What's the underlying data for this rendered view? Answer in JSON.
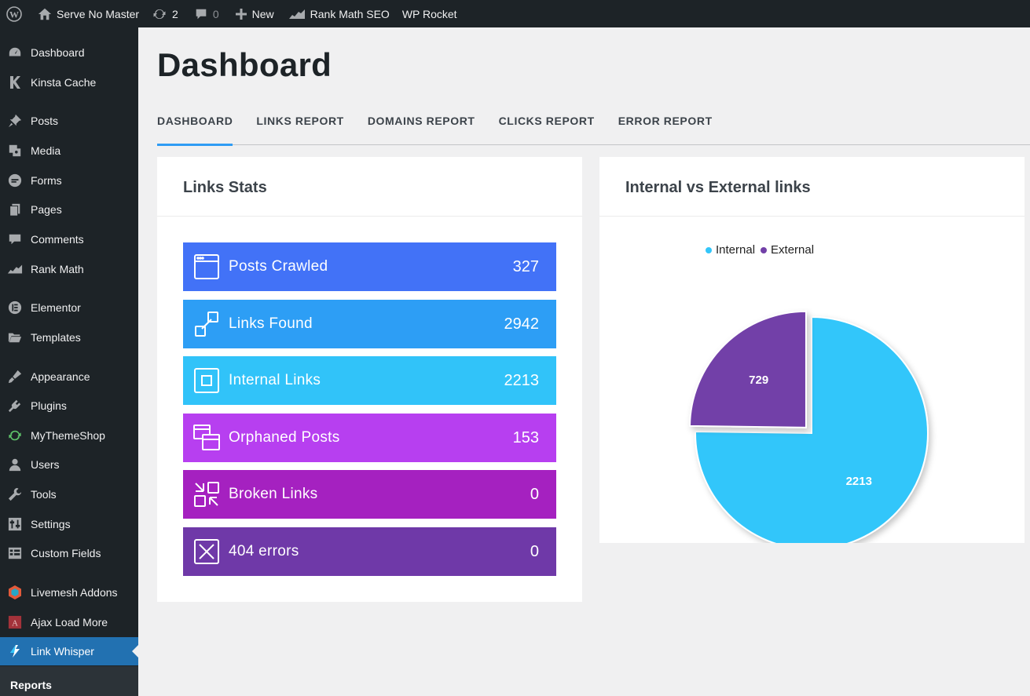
{
  "adminbar": {
    "site_name": "Serve No Master",
    "updates_count": "2",
    "comments_count": "0",
    "new_label": "New",
    "rankmath_label": "Rank Math SEO",
    "wprocket_label": "WP Rocket"
  },
  "sidebar": {
    "items": [
      {
        "label": "Dashboard",
        "icon": "dashboard-icon"
      },
      {
        "label": "Kinsta Cache",
        "icon": "kinsta-icon"
      },
      {
        "label": "Posts",
        "icon": "pin-icon"
      },
      {
        "label": "Media",
        "icon": "media-icon"
      },
      {
        "label": "Forms",
        "icon": "forms-icon"
      },
      {
        "label": "Pages",
        "icon": "pages-icon"
      },
      {
        "label": "Comments",
        "icon": "comment-icon"
      },
      {
        "label": "Rank Math",
        "icon": "rank-math-icon"
      },
      {
        "label": "Elementor",
        "icon": "elementor-icon"
      },
      {
        "label": "Templates",
        "icon": "folder-icon"
      },
      {
        "label": "Appearance",
        "icon": "brush-icon"
      },
      {
        "label": "Plugins",
        "icon": "plugin-icon"
      },
      {
        "label": "MyThemeShop",
        "icon": "refresh-icon"
      },
      {
        "label": "Users",
        "icon": "user-icon"
      },
      {
        "label": "Tools",
        "icon": "wrench-icon"
      },
      {
        "label": "Settings",
        "icon": "settings-icon"
      },
      {
        "label": "Custom Fields",
        "icon": "grid-icon"
      },
      {
        "label": "Livemesh Addons",
        "icon": "livemesh-icon"
      },
      {
        "label": "Ajax Load More",
        "icon": "ajax-icon"
      },
      {
        "label": "Link Whisper",
        "icon": "link-whisper-icon"
      }
    ],
    "submenu_label": "Reports"
  },
  "page": {
    "title": "Dashboard",
    "tabs": [
      "DASHBOARD",
      "LINKS REPORT",
      "DOMAINS REPORT",
      "CLICKS REPORT",
      "ERROR REPORT"
    ]
  },
  "links_stats": {
    "title": "Links Stats",
    "items": [
      {
        "label": "Posts Crawled",
        "value": "327",
        "color": "#4272f7",
        "icon": "browser-window-icon"
      },
      {
        "label": "Links Found",
        "value": "2942",
        "color": "#2d9ef5",
        "icon": "link-icon"
      },
      {
        "label": "Internal Links",
        "value": "2213",
        "color": "#31c3f9",
        "icon": "square-icon"
      },
      {
        "label": "Orphaned Posts",
        "value": "153",
        "color": "#b73ff0",
        "icon": "stacked-windows-icon"
      },
      {
        "label": "Broken Links",
        "value": "0",
        "color": "#a521c0",
        "icon": "broken-link-icon"
      },
      {
        "label": "404 errors",
        "value": "0",
        "color": "#6f39a8",
        "icon": "x-box-icon"
      }
    ]
  },
  "chart_panel": {
    "title": "Internal vs External links"
  },
  "chart_data": {
    "type": "pie",
    "title": "Internal vs External links",
    "series": [
      {
        "name": "Internal",
        "value": 2213,
        "color": "#33c6fa"
      },
      {
        "name": "External",
        "value": 729,
        "color": "#7240a8"
      }
    ],
    "legend": "top"
  }
}
